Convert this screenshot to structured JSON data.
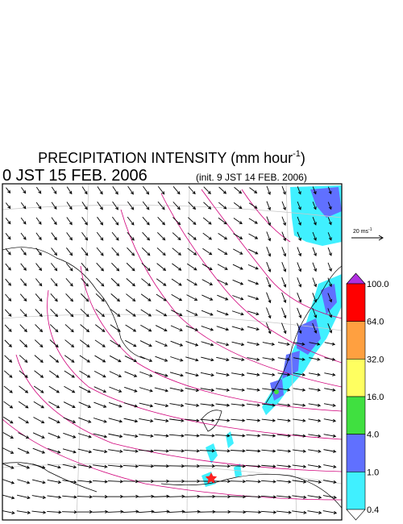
{
  "header": {
    "title": {
      "text": "PRECIPITATION INTENSITY (mm hour",
      "superscript": "-1",
      "suffix": ")"
    },
    "valid_time": "0 JST 15 FEB. 2006",
    "init_time": "(init. 9 JST 14 FEB. 2006)"
  },
  "wind_scale": {
    "text": "20 ms",
    "superscript": "-1"
  },
  "color_bar": {
    "labels": [
      "100.0",
      "64.0",
      "32.0",
      "16.0",
      "4.0",
      "1.0",
      "0.4"
    ],
    "colors": [
      "#ff0000",
      "#ffa040",
      "#ffff60",
      "#40e040",
      "#6070ff",
      "#40f0ff"
    ],
    "over_color": "#b030e0",
    "under_color": "#ffffff"
  }
}
